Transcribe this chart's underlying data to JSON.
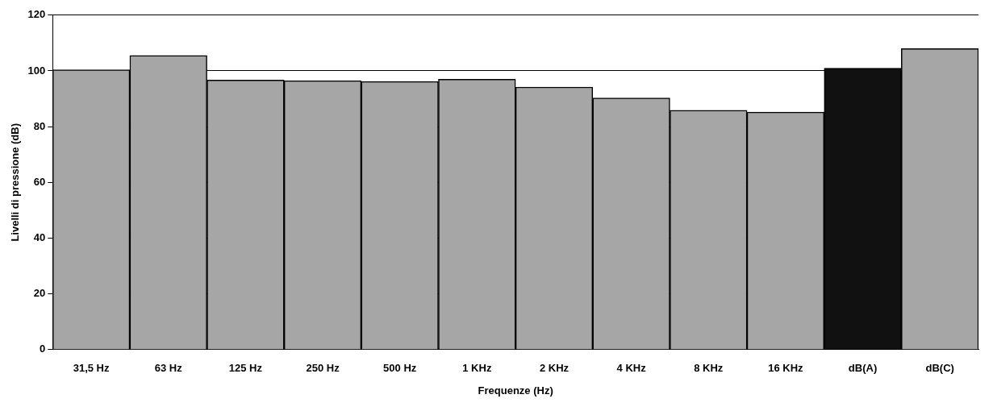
{
  "chart_data": {
    "type": "bar",
    "xlabel": "Frequenze (Hz)",
    "ylabel": "Livelli di pressione (dB)",
    "categories": [
      "31,5 Hz",
      "63 Hz",
      "125 Hz",
      "250 Hz",
      "500 Hz",
      "1 KHz",
      "2 KHz",
      "4 KHz",
      "8 KHz",
      "16 KHz",
      "dB(A)",
      "dB(C)"
    ],
    "values": [
      100.4,
      105.5,
      96.7,
      96.5,
      96.2,
      97,
      94.2,
      90.3,
      85.9,
      85.2,
      101,
      108
    ],
    "colors": [
      "#a6a6a6",
      "#a6a6a6",
      "#a6a6a6",
      "#a6a6a6",
      "#a6a6a6",
      "#a6a6a6",
      "#a6a6a6",
      "#a6a6a6",
      "#a6a6a6",
      "#a6a6a6",
      "#111111",
      "#a6a6a6"
    ],
    "ylim": [
      0,
      120
    ],
    "yticks": [
      0,
      20,
      40,
      60,
      80,
      100,
      120
    ],
    "grid": "y",
    "legend": false
  }
}
